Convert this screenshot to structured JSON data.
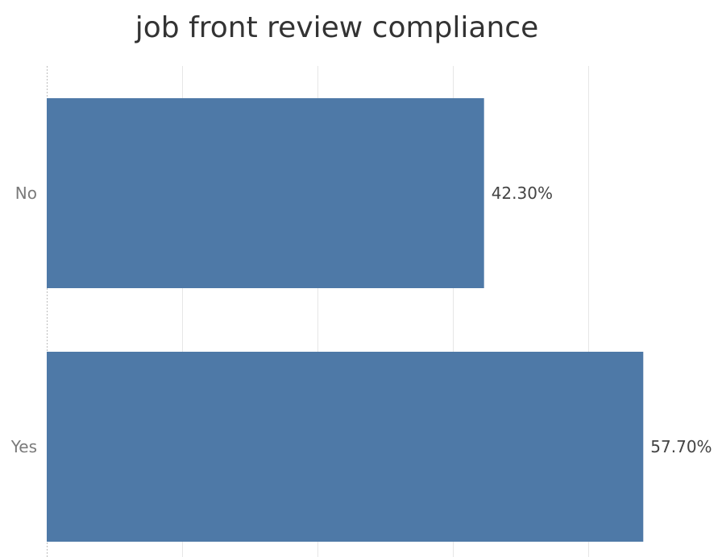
{
  "chart_data": {
    "type": "bar",
    "orientation": "horizontal",
    "title": "job front review compliance",
    "categories": [
      "No",
      "Yes"
    ],
    "values": [
      42.3,
      57.7
    ],
    "value_labels": [
      "42.30%",
      "57.70%"
    ],
    "xlim": [
      0,
      62.5
    ],
    "grid": true,
    "x_axis_tick_labels_shown": false,
    "bar_color": "#4e79a7",
    "gridline_color": "#e6e6e6"
  }
}
